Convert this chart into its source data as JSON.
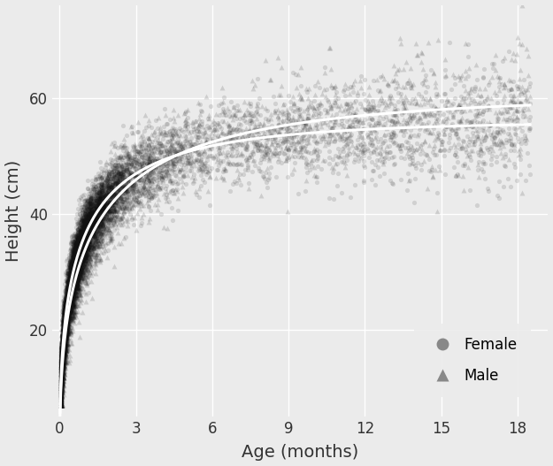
{
  "title": "",
  "xlabel": "Age (months)",
  "ylabel": "Height (cm)",
  "xlim": [
    -0.3,
    19.2
  ],
  "ylim": [
    5,
    76
  ],
  "xticks": [
    0,
    3,
    6,
    9,
    12,
    15,
    18
  ],
  "yticks": [
    20,
    40,
    60
  ],
  "bg_color": "#EBEBEB",
  "grid_color": "white",
  "dot_color": "#111111",
  "dot_alpha_f": 0.12,
  "dot_alpha_m": 0.14,
  "dot_size_f": 14,
  "dot_size_m": 18,
  "curve_color": "white",
  "curve_lw": 2.2,
  "n_female": 8000,
  "n_male": 4000,
  "curve1_A": 56.0,
  "curve1_b": 1.05,
  "curve2_A": 60.5,
  "curve2_b": 0.82,
  "legend_female_label": "Female",
  "legend_male_label": "Male",
  "female_marker": "o",
  "male_marker": "^"
}
